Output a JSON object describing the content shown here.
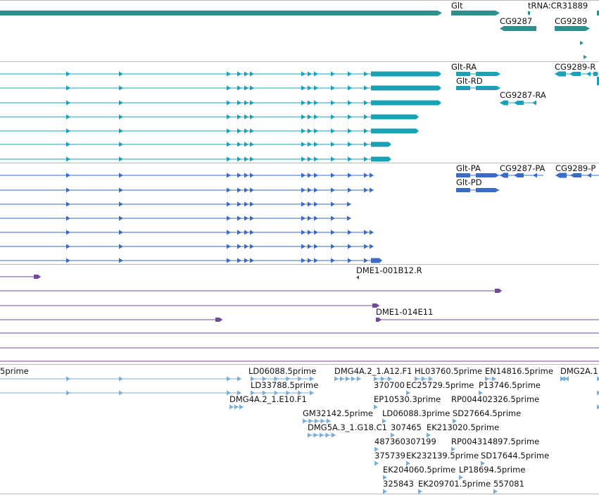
{
  "colors": {
    "genes": "#2e8f8f",
    "transcripts": "#19a1b8",
    "proteins": "#3a6cc7",
    "bacs": "#6e4a99",
    "ests": "#7aaed9",
    "separator": "#b8b8b8"
  },
  "tracks": {
    "genes": {
      "labels": [
        "Glt",
        "tRNA:CR31889",
        "CG9287",
        "CG9289"
      ]
    },
    "transcripts": {
      "labels": [
        "Glt-RA",
        "Glt-RD",
        "CG9287-RA",
        "CG9289-R"
      ]
    },
    "proteins": {
      "labels": [
        "Glt-PA",
        "CG9287-PA",
        "CG9289-P",
        "Glt-PD"
      ]
    },
    "bacs": {
      "labels": [
        "DME1-001B12.R",
        "DME1-014E11"
      ]
    },
    "ests": {
      "labels": [
        "5prime",
        "LD06088.5prime",
        "DMG4A.2_1.A12.F1",
        "HL03760.5prime",
        "EN14816.5prime",
        "DMG2A.1",
        "LD33788.5prime",
        "370700",
        "EC25729.5prime",
        "P13746.5prime",
        "DMG4A.2_1.E10.F1",
        "EP10530.3prime",
        "RP004402326.5prime",
        "GM32142.5prime",
        "LD06088.3prime",
        "SD27664.5prime",
        "DMG5A.3_1.G18.C1",
        "307465",
        "EK213020.5prime",
        "487360307199",
        "RP004314897.5prime",
        "375739",
        "EK232139.5prime",
        "SD17644.5prime",
        "EK204060.5prime",
        "LP18694.5prime",
        "325843",
        "EK209701.5prime",
        "557081"
      ]
    }
  }
}
